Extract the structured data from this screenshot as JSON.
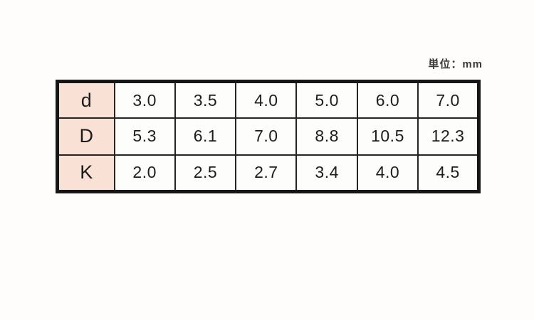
{
  "page": {
    "unit_label": "単位：mm",
    "background_color": "#fefdfc"
  },
  "table": {
    "header_bg_color": "#f9e2d5",
    "border_color": "#161616",
    "row_headers": [
      "d",
      "D",
      "K"
    ],
    "rows": [
      {
        "label": "d",
        "values": [
          "3.0",
          "3.5",
          "4.0",
          "5.0",
          "6.0",
          "7.0"
        ]
      },
      {
        "label": "D",
        "values": [
          "5.3",
          "6.1",
          "7.0",
          "8.8",
          "10.5",
          "12.3"
        ]
      },
      {
        "label": "K",
        "values": [
          "2.0",
          "2.5",
          "2.7",
          "3.4",
          "4.0",
          "4.5"
        ]
      }
    ]
  },
  "chart_data": {
    "type": "table",
    "title": "",
    "unit": "mm",
    "columns": [
      "3.0",
      "3.5",
      "4.0",
      "5.0",
      "6.0",
      "7.0"
    ],
    "series": [
      {
        "name": "d",
        "values": [
          3.0,
          3.5,
          4.0,
          5.0,
          6.0,
          7.0
        ]
      },
      {
        "name": "D",
        "values": [
          5.3,
          6.1,
          7.0,
          8.8,
          10.5,
          12.3
        ]
      },
      {
        "name": "K",
        "values": [
          2.0,
          2.5,
          2.7,
          3.4,
          4.0,
          4.5
        ]
      }
    ],
    "annotations": [
      "単位：mm"
    ]
  }
}
